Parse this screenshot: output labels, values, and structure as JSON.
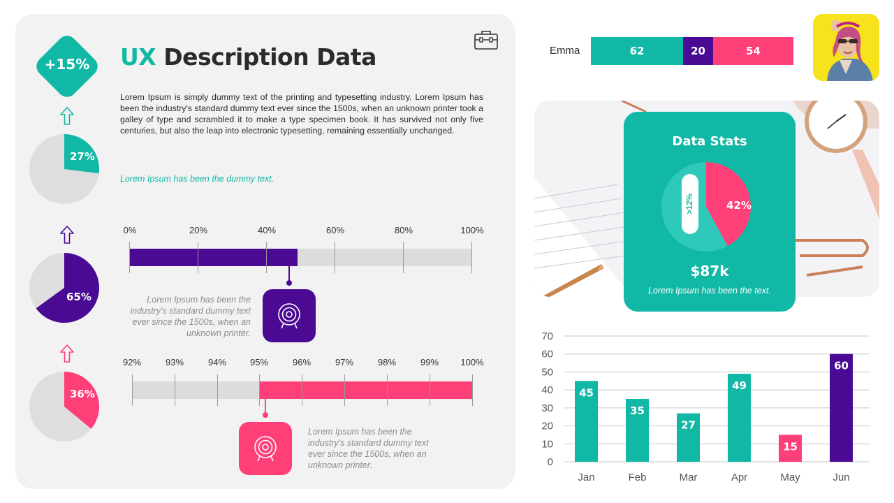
{
  "title": {
    "accent": "UX",
    "rest": " Description Data"
  },
  "badge": "+15%",
  "description": "Lorem Ipsum is simply dummy text of the printing and typesetting industry. Lorem Ipsum has been the industry's standard dummy text ever since the 1500s, when an unknown printer took a galley of type and scrambled it to make a type specimen book. It has survived not only five centuries, but also the leap into electronic typesetting, remaining essentially unchanged.",
  "teal_note": "Lorem Ipsum has been the dummy text.",
  "side_pies": [
    {
      "label": "27%",
      "value": 27,
      "color": "#12b8a6",
      "arrow_color": "#12b8a6"
    },
    {
      "label": "65%",
      "value": 65,
      "color": "#4a0a94",
      "arrow_color": "#4a0a94"
    },
    {
      "label": "36%",
      "value": 36,
      "color": "#ff3f78",
      "arrow_color": "#ff3f78"
    }
  ],
  "progress_top": {
    "ticks": [
      "0%",
      "20%",
      "40%",
      "60%",
      "80%",
      "100%"
    ],
    "value": 49,
    "color": "#4a0a94",
    "note": "Lorem Ipsum has been the industry's standard dummy text ever since the 1500s, when an unknown printer."
  },
  "progress_bottom": {
    "ticks": [
      "92%",
      "93%",
      "94%",
      "95%",
      "96%",
      "97%",
      "98%",
      "99%",
      "100%"
    ],
    "start": 95,
    "end": 100,
    "color": "#ff3f78",
    "note": "Lorem Ipsum has been the industry's standard dummy text ever since the 1500s, when an unknown printer."
  },
  "emma": {
    "label": "Emma",
    "segments": [
      {
        "value": "62",
        "color": "#12b8a6"
      },
      {
        "value": "20",
        "color": "#4a0a94"
      },
      {
        "value": "54",
        "color": "#ff3f78"
      }
    ]
  },
  "stats": {
    "title": "Data Stats",
    "pie_label": "42%",
    "pie_value": 42,
    "pill_label": ">12%",
    "amount": "$87k",
    "text": "Lorem Ipsum has been the text."
  },
  "chart_data": {
    "type": "bar",
    "categories": [
      "Jan",
      "Feb",
      "Mar",
      "Apr",
      "May",
      "Jun"
    ],
    "values": [
      45,
      35,
      27,
      49,
      15,
      60
    ],
    "colors": [
      "#12b8a6",
      "#12b8a6",
      "#12b8a6",
      "#12b8a6",
      "#ff3f78",
      "#4a0a94"
    ],
    "yticks": [
      "0",
      "10",
      "20",
      "30",
      "40",
      "50",
      "60",
      "70"
    ],
    "ylim": [
      0,
      70
    ],
    "grid": true
  }
}
